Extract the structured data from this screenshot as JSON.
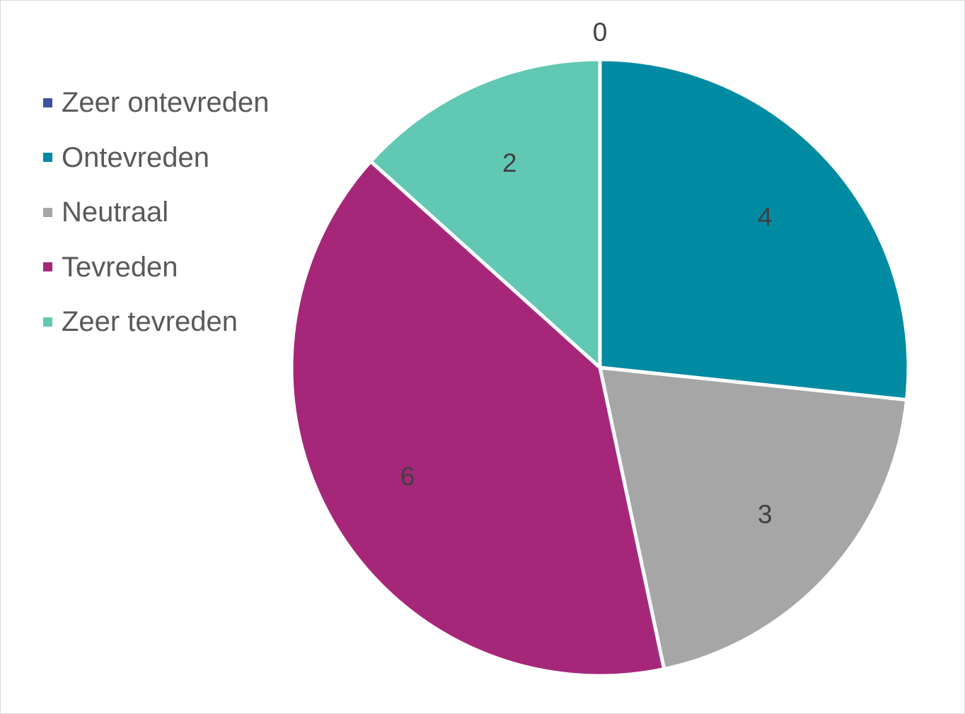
{
  "chart_data": {
    "type": "pie",
    "categories": [
      "Zeer ontevreden",
      "Ontevreden",
      "Neutraal",
      "Tevreden",
      "Zeer tevreden"
    ],
    "values": [
      0,
      4,
      3,
      6,
      2
    ],
    "data_labels": [
      "0",
      "4",
      "3",
      "6",
      "2"
    ],
    "colors": [
      "#3f51a5",
      "#008ba3",
      "#a6a6a6",
      "#a6277a",
      "#61c8b4"
    ],
    "start_angle_deg": 0,
    "direction": "clockwise",
    "legend": {
      "placement": "left",
      "entries": [
        "Zeer ontevreden",
        "Ontevreden",
        "Neutraal",
        "Tevreden",
        "Zeer tevreden"
      ]
    }
  }
}
